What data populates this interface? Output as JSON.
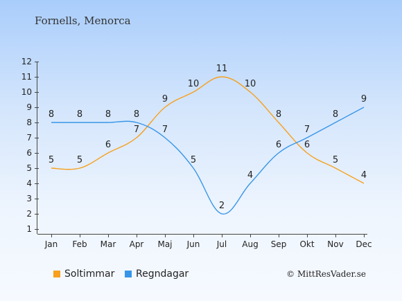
{
  "location": "Fornells, Menorca",
  "copyright": "© MittResVader.se",
  "chart_data": {
    "type": "line",
    "categories": [
      "Jan",
      "Feb",
      "Mar",
      "Apr",
      "Maj",
      "Jun",
      "Jul",
      "Aug",
      "Sep",
      "Okt",
      "Nov",
      "Dec"
    ],
    "ylim": [
      1,
      12
    ],
    "yticks": [
      1,
      2,
      3,
      4,
      5,
      6,
      7,
      8,
      9,
      10,
      11,
      12
    ],
    "series": [
      {
        "name": "Soltimmar",
        "color": "#f7a01c",
        "values": [
          5,
          5,
          6,
          7,
          9,
          10,
          11,
          10,
          8,
          6,
          5,
          4
        ]
      },
      {
        "name": "Regndagar",
        "color": "#3795e8",
        "values": [
          8,
          8,
          8,
          8,
          7,
          5,
          2,
          4,
          6,
          7,
          8,
          9
        ]
      }
    ]
  }
}
